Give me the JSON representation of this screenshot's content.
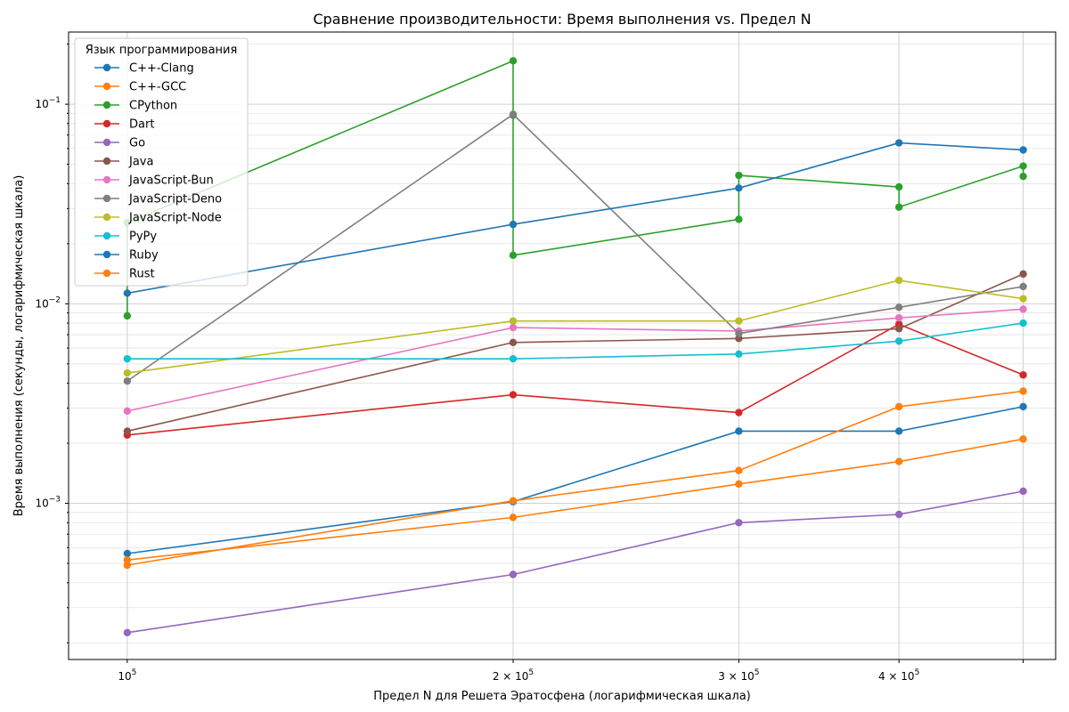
{
  "chart_data": {
    "type": "line",
    "title": "Сравнение производительности: Время выполнения vs. Предел N",
    "xlabel": "Предел N для Решета Эратосфена (логарифмическая шкала)",
    "ylabel": "Время выполнения (секунды, логарифмическая шкала)",
    "x_scale": "log",
    "y_scale": "log",
    "xlim": [
      90000,
      530000
    ],
    "ylim": [
      0.000165,
      0.23
    ],
    "grid": true,
    "legend_title": "Язык программирования",
    "legend_position": "upper-left",
    "x_ticks": [
      {
        "base": "10",
        "exp": "5"
      },
      {
        "base": "2 × 10",
        "exp": "5"
      },
      {
        "base": "3 × 10",
        "exp": "5"
      },
      {
        "base": "4 × 10",
        "exp": "5"
      }
    ],
    "y_ticks": [
      {
        "base": "10",
        "exp": "−3"
      },
      {
        "base": "10",
        "exp": "−2"
      },
      {
        "base": "10",
        "exp": "−1"
      }
    ],
    "series": [
      {
        "name": "C++-Clang",
        "color": "#1f77b4",
        "x": [
          100000,
          200000,
          300000,
          400000,
          500000
        ],
        "y": [
          0.00056,
          0.00102,
          0.0023,
          0.0023,
          0.00305
        ]
      },
      {
        "name": "C++-GCC",
        "color": "#ff7f0e",
        "x": [
          100000,
          200000,
          300000,
          400000,
          500000
        ],
        "y": [
          0.00052,
          0.00085,
          0.00125,
          0.00162,
          0.0021
        ]
      },
      {
        "name": "CPython",
        "color": "#2ca02c",
        "x": [
          100000,
          100000,
          200000,
          200000,
          200000,
          300000,
          300000,
          400000,
          400000,
          500000,
          500000
        ],
        "y": [
          0.0087,
          0.0255,
          0.165,
          0.088,
          0.0175,
          0.0265,
          0.044,
          0.0385,
          0.0305,
          0.049,
          0.0435
        ]
      },
      {
        "name": "Dart",
        "color": "#d62728",
        "x": [
          100000,
          200000,
          300000,
          400000,
          500000
        ],
        "y": [
          0.0022,
          0.0035,
          0.00285,
          0.0079,
          0.0044
        ]
      },
      {
        "name": "Go",
        "color": "#9467bd",
        "x": [
          100000,
          200000,
          300000,
          400000,
          500000
        ],
        "y": [
          0.000225,
          0.00044,
          0.0008,
          0.00088,
          0.00115
        ]
      },
      {
        "name": "Java",
        "color": "#8c564b",
        "x": [
          100000,
          200000,
          300000,
          400000,
          500000
        ],
        "y": [
          0.0023,
          0.0064,
          0.0067,
          0.0075,
          0.0141
        ]
      },
      {
        "name": "JavaScript-Bun",
        "color": "#e377c2",
        "x": [
          100000,
          200000,
          300000,
          400000,
          500000
        ],
        "y": [
          0.0029,
          0.0076,
          0.0073,
          0.0085,
          0.0094
        ]
      },
      {
        "name": "JavaScript-Deno",
        "color": "#7f7f7f",
        "x": [
          100000,
          200000,
          300000,
          400000,
          500000
        ],
        "y": [
          0.0041,
          0.089,
          0.0071,
          0.0096,
          0.0122
        ]
      },
      {
        "name": "JavaScript-Node",
        "color": "#bcbd22",
        "x": [
          100000,
          200000,
          300000,
          400000,
          500000
        ],
        "y": [
          0.0045,
          0.0082,
          0.0082,
          0.0131,
          0.0106
        ]
      },
      {
        "name": "PyPy",
        "color": "#17becf",
        "x": [
          100000,
          200000,
          300000,
          400000,
          500000
        ],
        "y": [
          0.0053,
          0.0053,
          0.0056,
          0.0065,
          0.008
        ]
      },
      {
        "name": "Ruby",
        "color": "#1f77b4",
        "x": [
          100000,
          200000,
          300000,
          400000,
          500000
        ],
        "y": [
          0.0113,
          0.025,
          0.038,
          0.064,
          0.059
        ]
      },
      {
        "name": "Rust",
        "color": "#ff7f0e",
        "x": [
          100000,
          200000,
          300000,
          400000,
          500000
        ],
        "y": [
          0.00049,
          0.00103,
          0.00146,
          0.00305,
          0.00365
        ]
      }
    ]
  }
}
